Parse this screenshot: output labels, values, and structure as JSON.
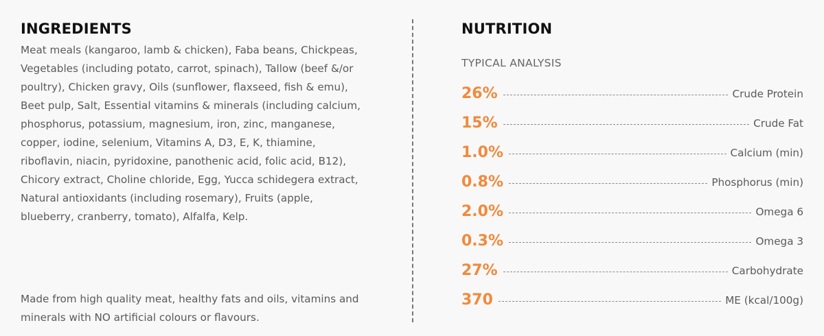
{
  "ingredients": {
    "heading": "INGREDIENTS",
    "text": "Meat meals (kangaroo, lamb & chicken), Faba beans, Chickpeas, Vegetables (including potato, carrot, spinach), Tallow (beef &/or poultry), Chicken gravy, Oils (sunflower, flaxseed, fish & emu), Beet pulp, Salt, Essential vitamins & minerals (including calcium, phosphorus, potassium, magnesium, iron, zinc, manganese, copper, iodine, selenium, Vitamins A, D3, E, K, thiamine, riboflavin, niacin, pyridoxine, panothenic acid, folic acid, B12), Chicory extract, Choline chloride, Egg, Yucca schidegera extract, Natural antioxidants (including rosemary), Fruits (apple, blueberry, cranberry, tomato), Alfalfa, Kelp.",
    "made_from": "Made from high quality meat, healthy fats and oils, vitamins and minerals with NO artificial colours or flavours."
  },
  "nutrition": {
    "heading": "NUTRITION",
    "subheading": "TYPICAL ANALYSIS",
    "accent_color": "#f08a3c",
    "items": [
      {
        "value": "26%",
        "label": "Crude Protein"
      },
      {
        "value": "15%",
        "label": "Crude Fat"
      },
      {
        "value": "1.0%",
        "label": "Calcium (min)"
      },
      {
        "value": "0.8%",
        "label": "Phosphorus (min)"
      },
      {
        "value": "2.0%",
        "label": "Omega 6"
      },
      {
        "value": "0.3%",
        "label": "Omega 3"
      },
      {
        "value": "27%",
        "label": "Carbohydrate"
      },
      {
        "value": "370",
        "label": "ME (kcal/100g)"
      }
    ]
  }
}
